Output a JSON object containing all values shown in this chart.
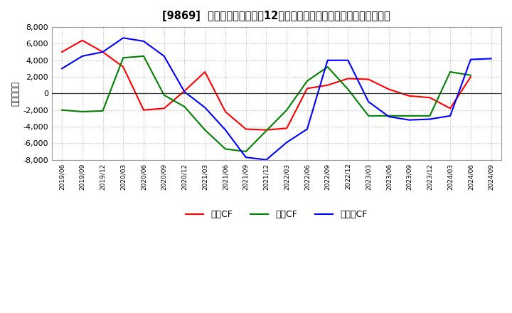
{
  "title": "[9869]  キャッシュフローの12か月移動合計の対前年同期増減額の推移",
  "ylabel": "（百万円）",
  "background_color": "#ffffff",
  "plot_background": "#ffffff",
  "grid_color": "#bbbbbb",
  "x_labels": [
    "2019/06",
    "2019/09",
    "2019/12",
    "2020/03",
    "2020/06",
    "2020/09",
    "2020/12",
    "2021/03",
    "2021/06",
    "2021/09",
    "2021/12",
    "2022/03",
    "2022/06",
    "2022/09",
    "2022/12",
    "2023/03",
    "2023/06",
    "2023/09",
    "2023/12",
    "2024/03",
    "2024/06",
    "2024/09"
  ],
  "operating_cf": [
    5000,
    6400,
    5000,
    3200,
    -2000,
    -1800,
    300,
    2600,
    -2200,
    -4300,
    -4400,
    -4200,
    600,
    1000,
    1800,
    1700,
    500,
    -300,
    -500,
    -1800,
    2000,
    null
  ],
  "investing_cf": [
    -2000,
    -2200,
    -2100,
    4300,
    4500,
    -200,
    -1600,
    -4400,
    -6700,
    -7000,
    -4500,
    -2000,
    1500,
    3200,
    500,
    -2700,
    -2700,
    -2700,
    -2700,
    2600,
    2200,
    null
  ],
  "free_cf": [
    3000,
    4500,
    5000,
    6700,
    6300,
    4500,
    200,
    -1700,
    -4400,
    -7700,
    -8000,
    -5900,
    -4300,
    4000,
    4000,
    -1000,
    -2800,
    -3200,
    -3100,
    -2700,
    4100,
    4200
  ],
  "operating_color": "#ff0000",
  "investing_color": "#008000",
  "free_color": "#0000ff",
  "ylim": [
    -8000,
    8000
  ],
  "yticks": [
    -8000,
    -6000,
    -4000,
    -2000,
    0,
    2000,
    4000,
    6000,
    8000
  ],
  "legend_labels": [
    "営業CF",
    "投資CF",
    "フリーCF"
  ]
}
